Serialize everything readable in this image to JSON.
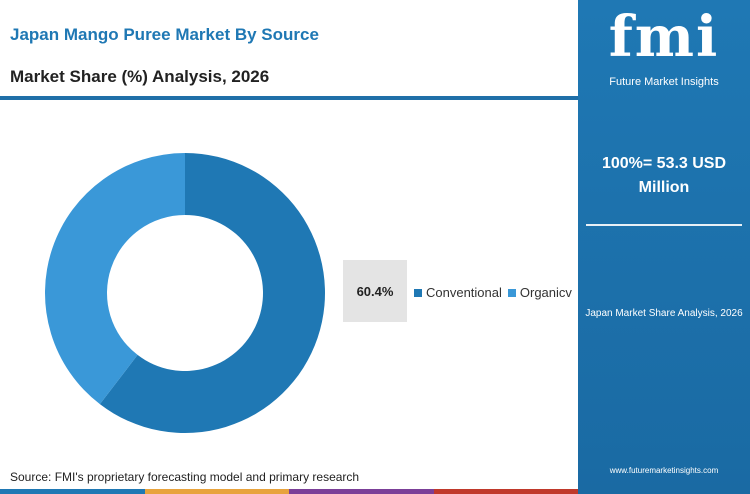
{
  "header": {
    "title": "Japan Mango Puree Market By Source",
    "subtitle": "Market Share (%) Analysis, 2026"
  },
  "chart_data": {
    "type": "pie",
    "donut": true,
    "title": "Japan Mango Puree Market By Source",
    "subtitle": "Market Share (%) Analysis, 2026",
    "categories": [
      "Conventional",
      "Organicv"
    ],
    "values": [
      60.4,
      39.6
    ],
    "colors": [
      "#1f78b4",
      "#3a98d8"
    ],
    "data_label": "60.4%",
    "legend": "right"
  },
  "legend": {
    "items": [
      {
        "label": "Conventional",
        "color": "#1f78b4"
      },
      {
        "label": "Organicv",
        "color": "#3a98d8"
      }
    ]
  },
  "source": "Source: FMI's proprietary forecasting model and primary research",
  "panel": {
    "logo_text": "fmi",
    "logo_tagline": "Future Market Insights",
    "total_line1": "100%= 53.3 USD",
    "total_line2": "Million",
    "caption": "Japan Market Share Analysis, 2026",
    "website": "www.futuremarketinsights.com"
  },
  "colors": {
    "accent": "#1f78b4",
    "bottom_bar": [
      "#1f78b4",
      "#e8a33d",
      "#7b3f98",
      "#c0392b"
    ]
  }
}
